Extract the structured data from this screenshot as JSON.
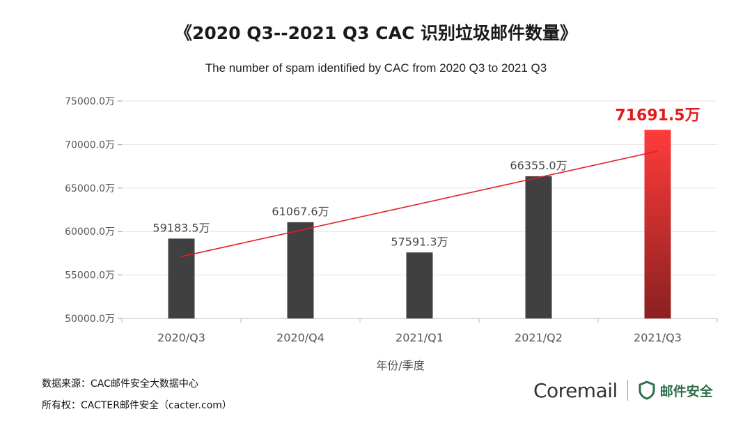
{
  "title": "《2020 Q3--2021 Q3 CAC 识别垃圾邮件数量》",
  "subtitle": "The number of spam identified by CAC from 2020 Q3 to 2021 Q3",
  "footer": {
    "source": "数据来源：CAC邮件安全大数据中心",
    "copyright": "所有权：CACTER邮件安全（cacter.com）"
  },
  "brand": {
    "name": "Coremail",
    "product": "邮件安全",
    "icon": "shield-icon",
    "color": "#2f6f4a"
  },
  "chart_data": {
    "type": "bar",
    "xlabel": "年份/季度",
    "categories": [
      "2020/Q3",
      "2020/Q4",
      "2021/Q1",
      "2021/Q2",
      "2021/Q3"
    ],
    "values": [
      59183.5,
      61067.6,
      57591.3,
      66355.0,
      71691.5
    ],
    "data_labels": [
      "59183.5万",
      "61067.6万",
      "57591.3万",
      "66355.0万",
      "71691.5万"
    ],
    "yticks": [
      "50000.0万",
      "55000.0万",
      "60000.0万",
      "65000.0万",
      "70000.0万",
      "75000.0万"
    ],
    "ylim": [
      50000,
      75000
    ],
    "grid": true,
    "trendline": true,
    "colors": {
      "bar": "#404040",
      "highlight_top": "#ff3b3b",
      "highlight_bottom": "#8b2020",
      "highlight_label": "#e31b1b",
      "trend": "#e02020",
      "grid": "#e3e3e3",
      "axis_text": "#555555"
    }
  }
}
